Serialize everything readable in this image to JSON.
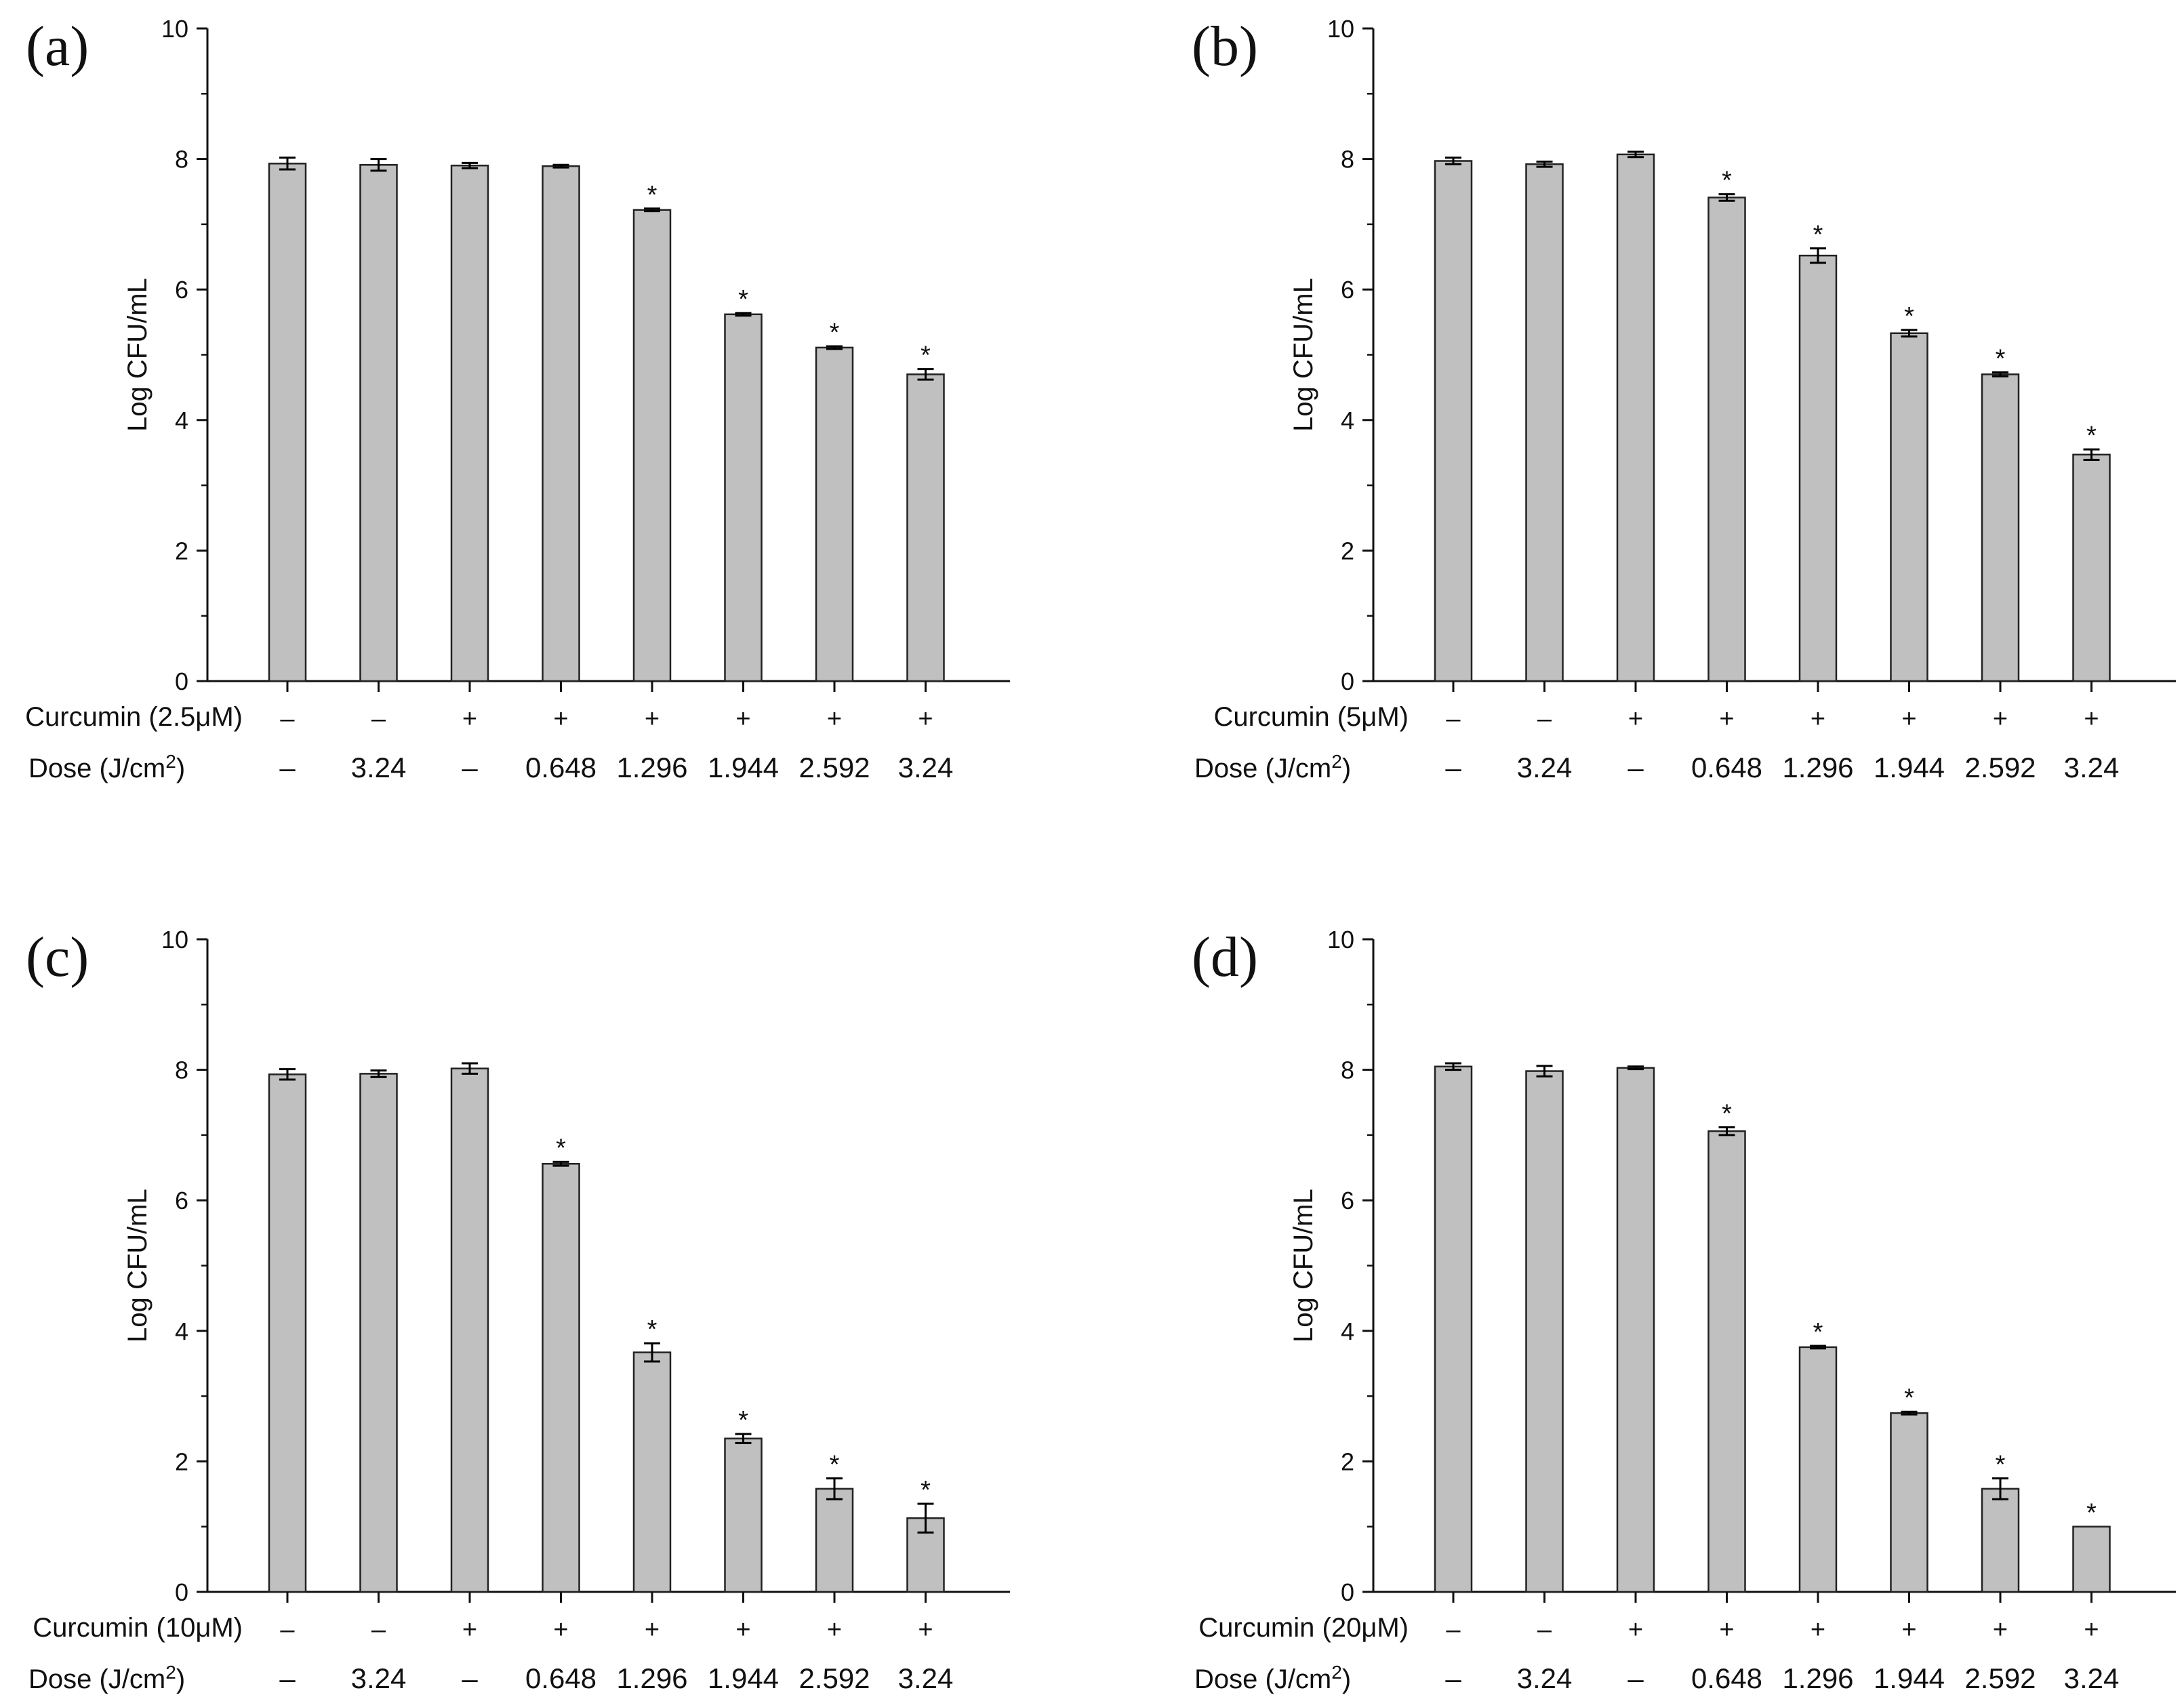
{
  "chart_data": [
    {
      "type": "bar",
      "panel_label": "(a)",
      "ylabel": "Log CFU/mL",
      "ylim": [
        0,
        10
      ],
      "yticks": [
        "0",
        "2",
        "4",
        "6",
        "8",
        "10"
      ],
      "row_labels": [
        "Curcumin (2.5μM)",
        "Dose (J/cm²)"
      ],
      "curcumin": [
        "–",
        "–",
        "+",
        "+",
        "+",
        "+",
        "+",
        "+"
      ],
      "dose": [
        "–",
        "3.24",
        "–",
        "0.648",
        "1.296",
        "1.944",
        "2.592",
        "3.24"
      ],
      "values": [
        7.93,
        7.91,
        7.9,
        7.89,
        7.22,
        5.62,
        5.11,
        4.7
      ],
      "errors": [
        0.09,
        0.09,
        0.04,
        0.02,
        0.02,
        0.02,
        0.02,
        0.08
      ],
      "significant": [
        false,
        false,
        false,
        false,
        true,
        true,
        true,
        true
      ],
      "marker": "*"
    },
    {
      "type": "bar",
      "panel_label": "(b)",
      "ylabel": "Log CFU/mL",
      "ylim": [
        0,
        10
      ],
      "yticks": [
        "0",
        "2",
        "4",
        "6",
        "8",
        "10"
      ],
      "row_labels": [
        "Curcumin (5μM)",
        "Dose (J/cm²)"
      ],
      "curcumin": [
        "–",
        "–",
        "+",
        "+",
        "+",
        "+",
        "+",
        "+"
      ],
      "dose": [
        "–",
        "3.24",
        "–",
        "0.648",
        "1.296",
        "1.944",
        "2.592",
        "3.24"
      ],
      "values": [
        7.97,
        7.92,
        8.07,
        7.41,
        6.52,
        5.33,
        4.7,
        3.47
      ],
      "errors": [
        0.05,
        0.04,
        0.04,
        0.05,
        0.11,
        0.05,
        0.03,
        0.08
      ],
      "significant": [
        false,
        false,
        false,
        true,
        true,
        true,
        true,
        true
      ],
      "marker": "*"
    },
    {
      "type": "bar",
      "panel_label": "(c)",
      "ylabel": "Log CFU/mL",
      "ylim": [
        0,
        10
      ],
      "yticks": [
        "0",
        "2",
        "4",
        "6",
        "8",
        "10"
      ],
      "row_labels": [
        "Curcumin (10μM)",
        "Dose (J/cm²)"
      ],
      "curcumin": [
        "–",
        "–",
        "+",
        "+",
        "+",
        "+",
        "+",
        "+"
      ],
      "dose": [
        "–",
        "3.24",
        "–",
        "0.648",
        "1.296",
        "1.944",
        "2.592",
        "3.24"
      ],
      "values": [
        7.93,
        7.94,
        8.02,
        6.56,
        3.67,
        2.35,
        1.58,
        1.13
      ],
      "errors": [
        0.08,
        0.05,
        0.08,
        0.03,
        0.14,
        0.07,
        0.16,
        0.22
      ],
      "significant": [
        false,
        false,
        false,
        true,
        true,
        true,
        true,
        true
      ],
      "marker": "*"
    },
    {
      "type": "bar",
      "panel_label": "(d)",
      "ylabel": "Log CFU/mL",
      "ylim": [
        0,
        10
      ],
      "yticks": [
        "0",
        "2",
        "4",
        "6",
        "8",
        "10"
      ],
      "row_labels": [
        "Curcumin (20μM)",
        "Dose (J/cm²)"
      ],
      "curcumin": [
        "–",
        "–",
        "+",
        "+",
        "+",
        "+",
        "+",
        "+"
      ],
      "dose": [
        "–",
        "3.24",
        "–",
        "0.648",
        "1.296",
        "1.944",
        "2.592",
        "3.24"
      ],
      "values": [
        8.05,
        7.98,
        8.03,
        7.06,
        3.75,
        2.74,
        1.58,
        1.0
      ],
      "errors": [
        0.05,
        0.08,
        0.02,
        0.06,
        0.02,
        0.02,
        0.16,
        0.0
      ],
      "significant": [
        false,
        false,
        false,
        true,
        true,
        true,
        true,
        true
      ],
      "marker": "*"
    }
  ],
  "colors": {
    "bar_fill": "#c0c0c0",
    "bar_stroke": "#222222",
    "axis": "#111111",
    "text": "#111111"
  }
}
